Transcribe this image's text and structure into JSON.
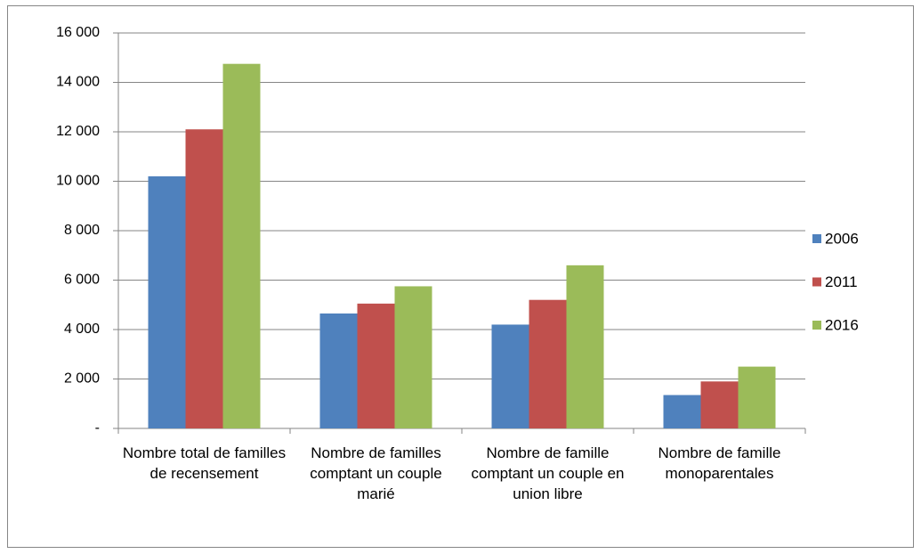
{
  "chart_data": {
    "type": "bar",
    "categories": [
      "Nombre total de familles de recensement",
      "Nombre de familles comptant un couple marié",
      "Nombre de famille comptant un couple en union libre",
      "Nombre de famille monoparentales"
    ],
    "series": [
      {
        "name": "2006",
        "color": "#4f81bd",
        "values": [
          10200,
          4650,
          4200,
          1350
        ]
      },
      {
        "name": "2011",
        "color": "#c0504d",
        "values": [
          12100,
          5050,
          5200,
          1900
        ]
      },
      {
        "name": "2016",
        "color": "#9bbb59",
        "values": [
          14750,
          5750,
          6600,
          2500
        ]
      }
    ],
    "ylim": [
      0,
      16000
    ],
    "yticks": [
      {
        "value": 0,
        "label": "-"
      },
      {
        "value": 2000,
        "label": "2 000"
      },
      {
        "value": 4000,
        "label": "4 000"
      },
      {
        "value": 6000,
        "label": "6 000"
      },
      {
        "value": 8000,
        "label": "8 000"
      },
      {
        "value": 10000,
        "label": "10 000"
      },
      {
        "value": 12000,
        "label": "12 000"
      },
      {
        "value": 14000,
        "label": "14 000"
      },
      {
        "value": 16000,
        "label": "16 000"
      }
    ],
    "grid": true,
    "legend": "right"
  }
}
